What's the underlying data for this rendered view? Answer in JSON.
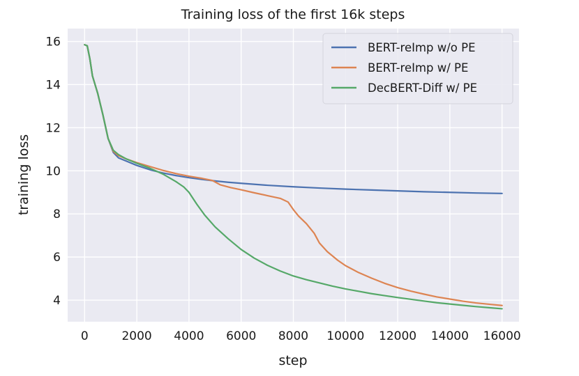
{
  "chart_data": {
    "type": "line",
    "title": "Training loss of the first 16k steps",
    "xlabel": "step",
    "ylabel": "training loss",
    "xlim": [
      -650,
      16650
    ],
    "ylim": [
      3.0,
      16.6
    ],
    "xticks": [
      0,
      2000,
      4000,
      6000,
      8000,
      10000,
      12000,
      14000,
      16000
    ],
    "yticks": [
      4,
      6,
      8,
      10,
      12,
      14,
      16
    ],
    "grid": true,
    "legend_position": "top-right",
    "series": [
      {
        "name": "BERT-reImp w/o PE",
        "color": "#4c72b0",
        "x": [
          0,
          100,
          200,
          300,
          500,
          700,
          900,
          1100,
          1300,
          1600,
          2000,
          2500,
          3000,
          3500,
          4000,
          4500,
          5000,
          5500,
          6000,
          7000,
          8000,
          9000,
          10000,
          11000,
          12000,
          13000,
          14000,
          15000,
          16000
        ],
        "y": [
          15.85,
          15.8,
          15.2,
          14.4,
          13.6,
          12.6,
          11.5,
          10.85,
          10.6,
          10.45,
          10.25,
          10.05,
          9.9,
          9.78,
          9.68,
          9.6,
          9.53,
          9.47,
          9.42,
          9.33,
          9.26,
          9.2,
          9.15,
          9.11,
          9.07,
          9.03,
          9.0,
          8.97,
          8.95
        ]
      },
      {
        "name": "BERT-reImp w/ PE",
        "color": "#dd8452",
        "x": [
          0,
          100,
          200,
          300,
          500,
          700,
          900,
          1100,
          1300,
          1600,
          2000,
          2500,
          3000,
          3500,
          4000,
          4500,
          4900,
          5200,
          5600,
          6000,
          6500,
          7000,
          7500,
          7800,
          8000,
          8200,
          8500,
          8800,
          9000,
          9300,
          9700,
          10000,
          10500,
          11000,
          11500,
          12000,
          12500,
          13000,
          13500,
          14000,
          14500,
          15000,
          15500,
          16000
        ],
        "y": [
          15.85,
          15.8,
          15.2,
          14.4,
          13.6,
          12.6,
          11.5,
          10.9,
          10.7,
          10.55,
          10.38,
          10.2,
          10.02,
          9.87,
          9.75,
          9.65,
          9.55,
          9.35,
          9.22,
          9.12,
          8.98,
          8.85,
          8.72,
          8.55,
          8.2,
          7.9,
          7.55,
          7.1,
          6.65,
          6.25,
          5.85,
          5.6,
          5.28,
          5.02,
          4.78,
          4.58,
          4.42,
          4.28,
          4.15,
          4.05,
          3.95,
          3.87,
          3.81,
          3.75
        ]
      },
      {
        "name": "DecBERT-Diff w/ PE",
        "color": "#55a868",
        "x": [
          0,
          100,
          200,
          300,
          500,
          700,
          900,
          1100,
          1300,
          1600,
          2000,
          2500,
          3000,
          3500,
          3800,
          4000,
          4300,
          4600,
          5000,
          5500,
          6000,
          6500,
          7000,
          7500,
          8000,
          8500,
          9000,
          9500,
          10000,
          10500,
          11000,
          11500,
          12000,
          12500,
          13000,
          13500,
          14000,
          14500,
          15000,
          15500,
          16000
        ],
        "y": [
          15.85,
          15.8,
          15.2,
          14.4,
          13.6,
          12.6,
          11.5,
          10.95,
          10.75,
          10.55,
          10.35,
          10.12,
          9.85,
          9.5,
          9.25,
          9.0,
          8.45,
          7.95,
          7.4,
          6.85,
          6.35,
          5.95,
          5.62,
          5.35,
          5.12,
          4.95,
          4.8,
          4.65,
          4.52,
          4.41,
          4.3,
          4.21,
          4.12,
          4.04,
          3.96,
          3.88,
          3.82,
          3.76,
          3.7,
          3.65,
          3.6
        ]
      }
    ]
  }
}
